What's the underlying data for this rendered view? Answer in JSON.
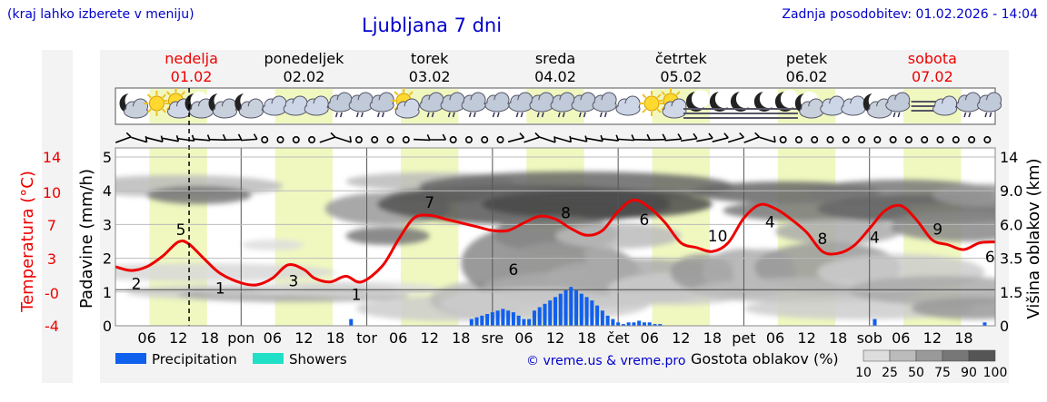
{
  "header": {
    "note_left": "(kraj lahko izberete v meniju)",
    "title": "Ljubljana 7 dni",
    "updated": "Zadnja posodobitev: 01.02.2026 - 14:04"
  },
  "days": [
    {
      "name": "nedelja",
      "date": "01.02",
      "weekend": true
    },
    {
      "name": "ponedeljek",
      "date": "02.02",
      "weekend": false
    },
    {
      "name": "torek",
      "date": "03.02",
      "weekend": false
    },
    {
      "name": "sreda",
      "date": "04.02",
      "weekend": false
    },
    {
      "name": "četrtek",
      "date": "05.02",
      "weekend": false
    },
    {
      "name": "petek",
      "date": "06.02",
      "weekend": false
    },
    {
      "name": "sobota",
      "date": "07.02",
      "weekend": true
    }
  ],
  "x_day_labels": [
    "pon",
    "tor",
    "sre",
    "čet",
    "pet",
    "sob"
  ],
  "x_hour_labels": [
    "06",
    "12",
    "18"
  ],
  "legend": {
    "precipitation": "Precipitation",
    "showers": "Showers",
    "credit": "© vreme.us & vreme.pro",
    "cloud_title": "Gostota oblakov (%)",
    "cloud_levels": [
      "10",
      "25",
      "50",
      "75",
      "90",
      "100"
    ]
  },
  "colors": {
    "accent_blue": "#0000cc",
    "temperature_red": "#ee0000",
    "precip_blue": "#1060ee",
    "showers_cyan": "#20e0c8",
    "daylight_band": "#f0f8c0"
  },
  "chart_data": {
    "type": "line",
    "x_unit": "hours since 01.02 00:00",
    "x_range": [
      0,
      168
    ],
    "current_time": 14.07,
    "left_axis_temperature": {
      "label": "Temperatura (°C)",
      "ticks": [
        "14",
        "10",
        "7",
        "3",
        "-0",
        "-4"
      ],
      "range": [
        -4,
        14
      ]
    },
    "left_axis_precip": {
      "label": "Padavine (mm/h)",
      "ticks": [
        "5",
        "4",
        "3",
        "2",
        "1",
        "0"
      ],
      "range": [
        0,
        5
      ]
    },
    "right_axis": {
      "label": "Višina oblakov (km)",
      "ticks": [
        "14",
        "9.0",
        "6.0",
        "3.5",
        "1.5",
        "0"
      ]
    },
    "temperature_series": {
      "name": "Temperatura",
      "x": [
        0,
        3,
        6,
        9,
        12,
        14,
        17,
        20,
        24,
        27,
        30,
        33,
        36,
        38,
        41,
        44,
        47,
        51,
        54,
        57,
        60,
        63,
        66,
        69,
        72,
        75,
        78,
        81,
        84,
        87,
        90,
        93,
        96,
        99,
        102,
        105,
        108,
        111,
        114,
        117,
        120,
        123,
        126,
        129,
        132,
        135,
        138,
        141,
        144,
        147,
        150,
        153,
        156,
        159,
        162,
        165,
        168
      ],
      "y": [
        2.2,
        1.8,
        2.2,
        3.3,
        4.8,
        4.6,
        3.0,
        1.5,
        0.5,
        0.3,
        1.0,
        2.4,
        1.9,
        1.0,
        0.6,
        1.2,
        0.6,
        2.3,
        5.0,
        7.3,
        7.6,
        7.2,
        6.8,
        6.4,
        6.0,
        6.0,
        6.8,
        7.5,
        7.2,
        6.2,
        5.5,
        6.0,
        8.0,
        9.2,
        8.4,
        6.8,
        4.7,
        4.2,
        3.8,
        4.7,
        7.3,
        8.7,
        8.3,
        7.2,
        5.8,
        3.8,
        3.6,
        4.4,
        6.2,
        8.1,
        8.6,
        7.1,
        5.0,
        4.5,
        4.0,
        4.7,
        4.8
      ],
      "labels": [
        {
          "x": 4,
          "value": "2"
        },
        {
          "x": 12.5,
          "value": "5"
        },
        {
          "x": 20,
          "value": "1"
        },
        {
          "x": 34,
          "value": "3"
        },
        {
          "x": 46,
          "value": "1"
        },
        {
          "x": 60,
          "value": "7"
        },
        {
          "x": 76,
          "value": "6"
        },
        {
          "x": 86,
          "value": "8"
        },
        {
          "x": 101,
          "value": "6"
        },
        {
          "x": 115,
          "value": "10"
        },
        {
          "x": 125,
          "value": "4"
        },
        {
          "x": 135,
          "value": "8"
        },
        {
          "x": 145,
          "value": "4"
        },
        {
          "x": 157,
          "value": "9"
        },
        {
          "x": 167,
          "value": "6"
        }
      ]
    },
    "precipitation_series": {
      "name": "Precipitation",
      "x": [
        45,
        68,
        69,
        70,
        71,
        72,
        73,
        74,
        75,
        76,
        77,
        78,
        79,
        80,
        81,
        82,
        83,
        84,
        85,
        86,
        87,
        88,
        89,
        90,
        91,
        92,
        93,
        94,
        95,
        96,
        97,
        98,
        99,
        100,
        101,
        102,
        103,
        104,
        145,
        166
      ],
      "y": [
        0.2,
        0.2,
        0.25,
        0.3,
        0.35,
        0.4,
        0.45,
        0.5,
        0.45,
        0.4,
        0.3,
        0.2,
        0.2,
        0.45,
        0.55,
        0.65,
        0.75,
        0.85,
        0.95,
        1.05,
        1.15,
        1.05,
        0.95,
        0.85,
        0.75,
        0.6,
        0.45,
        0.3,
        0.2,
        0.1,
        0.05,
        0.1,
        0.1,
        0.15,
        0.1,
        0.1,
        0.05,
        0.05,
        0.2,
        0.1
      ]
    },
    "gridlines": true,
    "legend_position": "bottom"
  }
}
